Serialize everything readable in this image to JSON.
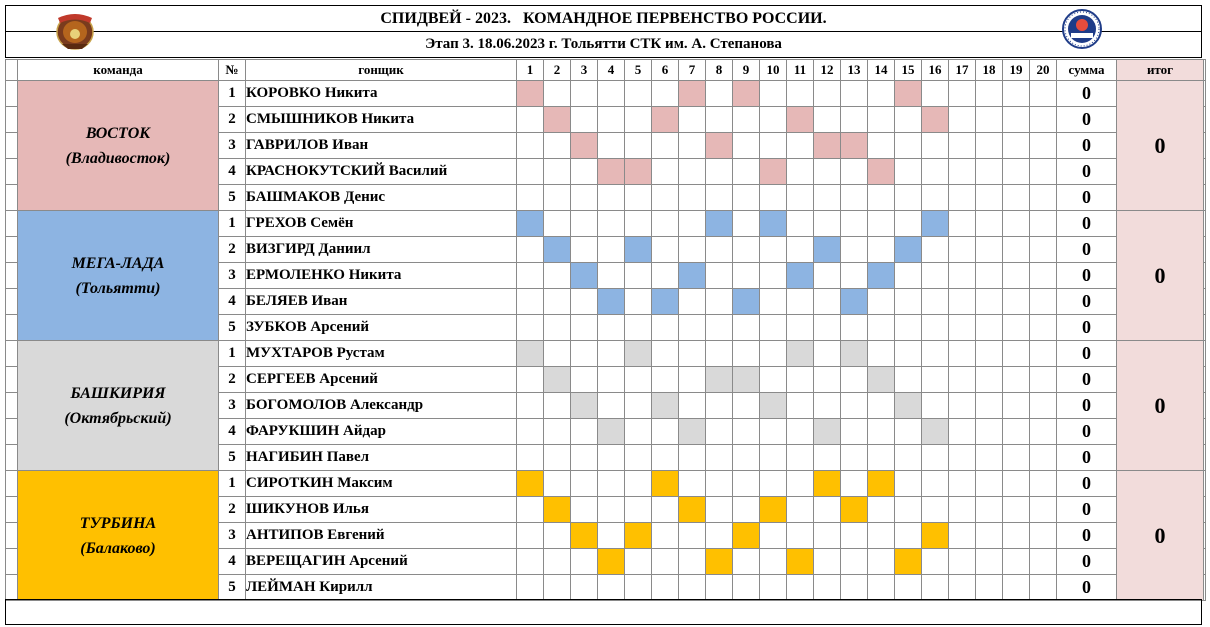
{
  "header": {
    "title": "СПИДВЕЙ - 2023.   КОМАНДНОЕ ПЕРВЕНСТВО РОССИИ.",
    "subtitle": "Этап 3. 18.06.2023 г. Тольятти СТК им. А. Степанова"
  },
  "columns": {
    "team": "команда",
    "num": "№",
    "rider": "гонщик",
    "heats": [
      "1",
      "2",
      "3",
      "4",
      "5",
      "6",
      "7",
      "8",
      "9",
      "10",
      "11",
      "12",
      "13",
      "14",
      "15",
      "16",
      "17",
      "18",
      "19",
      "20"
    ],
    "sum": "сумма",
    "total": "итог"
  },
  "colors": {
    "pink": "#e6b8b7",
    "blue": "#8db4e2",
    "gray": "#d9d9d9",
    "gold": "#ffc000",
    "total_bg": "#f2dcdb"
  },
  "teams": [
    {
      "name": "ВОСТОК",
      "city": "(Владивосток)",
      "color": "pink",
      "total": "0",
      "riders": [
        {
          "num": "1",
          "name": "КОРОВКО Никита",
          "sum": "0",
          "heats": [
            1,
            7,
            9,
            15
          ]
        },
        {
          "num": "2",
          "name": "СМЫШНИКОВ Никита",
          "sum": "0",
          "heats": [
            2,
            6,
            11,
            16
          ]
        },
        {
          "num": "3",
          "name": "ГАВРИЛОВ Иван",
          "sum": "0",
          "heats": [
            3,
            8,
            12,
            13
          ]
        },
        {
          "num": "4",
          "name": "КРАСНОКУТСКИЙ Василий",
          "sum": "0",
          "heats": [
            4,
            5,
            10,
            14
          ]
        },
        {
          "num": "5",
          "name": "БАШМАКОВ Денис",
          "sum": "0",
          "heats": []
        }
      ]
    },
    {
      "name": "МЕГА-ЛАДА",
      "city": "(Тольятти)",
      "color": "blue",
      "total": "0",
      "riders": [
        {
          "num": "1",
          "name": "ГРЕХОВ Семён",
          "sum": "0",
          "heats": [
            1,
            8,
            10,
            16
          ]
        },
        {
          "num": "2",
          "name": "ВИЗГИРД Даниил",
          "sum": "0",
          "heats": [
            2,
            5,
            12,
            15
          ]
        },
        {
          "num": "3",
          "name": "ЕРМОЛЕНКО Никита",
          "sum": "0",
          "heats": [
            3,
            7,
            11,
            14
          ]
        },
        {
          "num": "4",
          "name": "БЕЛЯЕВ Иван",
          "sum": "0",
          "heats": [
            4,
            6,
            9,
            13
          ]
        },
        {
          "num": "5",
          "name": "ЗУБКОВ Арсений",
          "sum": "0",
          "heats": []
        }
      ]
    },
    {
      "name": "БАШКИРИЯ",
      "city": "(Октябрьский)",
      "color": "gray",
      "total": "0",
      "riders": [
        {
          "num": "1",
          "name": "МУХТАРОВ Рустам",
          "sum": "0",
          "heats": [
            1,
            5,
            11,
            13
          ]
        },
        {
          "num": "2",
          "name": "СЕРГЕЕВ Арсений",
          "sum": "0",
          "heats": [
            2,
            8,
            9,
            14
          ]
        },
        {
          "num": "3",
          "name": "БОГОМОЛОВ Александр",
          "sum": "0",
          "heats": [
            3,
            6,
            10,
            15
          ]
        },
        {
          "num": "4",
          "name": "ФАРУКШИН Айдар",
          "sum": "0",
          "heats": [
            4,
            7,
            12,
            16
          ]
        },
        {
          "num": "5",
          "name": "НАГИБИН Павел",
          "sum": "0",
          "heats": []
        }
      ]
    },
    {
      "name": "ТУРБИНА",
      "city": "(Балаково)",
      "color": "gold",
      "total": "0",
      "riders": [
        {
          "num": "1",
          "name": "СИРОТКИН Максим",
          "sum": "0",
          "heats": [
            1,
            6,
            12,
            14
          ]
        },
        {
          "num": "2",
          "name": "ШИКУНОВ Илья",
          "sum": "0",
          "heats": [
            2,
            7,
            10,
            13
          ]
        },
        {
          "num": "3",
          "name": "АНТИПОВ Евгений",
          "sum": "0",
          "heats": [
            3,
            5,
            9,
            16
          ]
        },
        {
          "num": "4",
          "name": "ВЕРЕЩАГИН Арсений",
          "sum": "0",
          "heats": [
            4,
            8,
            11,
            15
          ]
        },
        {
          "num": "5",
          "name": "ЛЕЙМАН Кирилл",
          "sum": "0",
          "heats": []
        }
      ]
    }
  ]
}
